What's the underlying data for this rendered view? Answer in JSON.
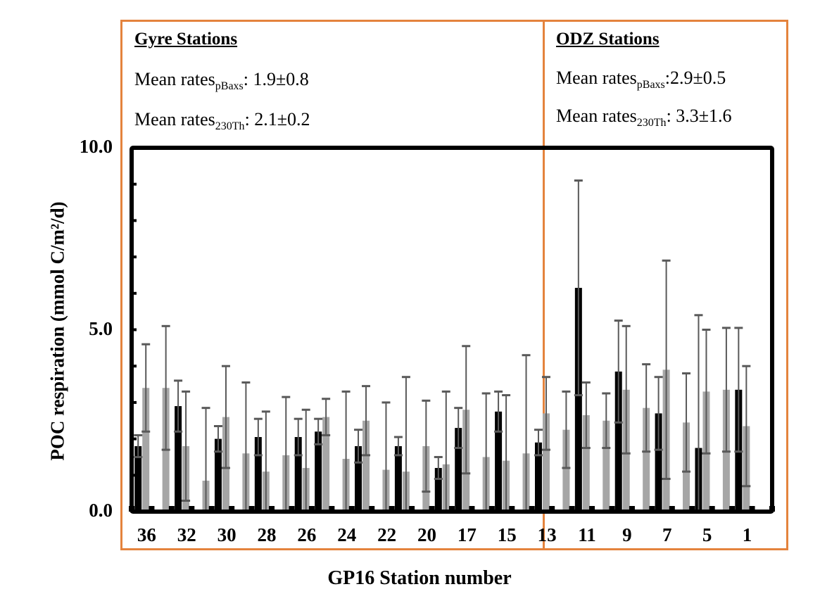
{
  "panels": {
    "gyre": {
      "title": "Gyre Stations",
      "mean_pbaxs_prefix": "Mean rates",
      "mean_pbaxs_sub": "pBaxs",
      "mean_pbaxs_value": ": 1.9±0.8",
      "mean_th_prefix": "Mean rates",
      "mean_th_sub": "230Th",
      "mean_th_value": ": 2.1±0.2"
    },
    "odz": {
      "title": "ODZ Stations",
      "mean_pbaxs_prefix": "Mean rates",
      "mean_pbaxs_sub": "pBaxs",
      "mean_pbaxs_value": ":2.9±0.5",
      "mean_th_prefix": "Mean rates",
      "mean_th_sub": "230Th",
      "mean_th_value": ": 3.3±1.6"
    }
  },
  "colors": {
    "frame_orange": "#e4833d",
    "pbaxs_bar": "#000000",
    "th_bar": "#a6a6a6",
    "error_bar": "#595959"
  },
  "chart_data": {
    "type": "bar",
    "title": "",
    "xlabel": "GP16 Station number",
    "ylabel": "POC respiration (mmol C/m²/d)",
    "ylim": [
      0,
      10
    ],
    "yticks": [
      "0.0",
      "5.0",
      "10.0"
    ],
    "ytick_values": [
      0,
      5,
      10
    ],
    "grid": false,
    "tick_labels": [
      "36",
      "32",
      "30",
      "28",
      "26",
      "24",
      "22",
      "20",
      "17",
      "15",
      "13",
      "11",
      "9",
      "7",
      "5",
      "1"
    ],
    "slot_count": 32,
    "series": [
      {
        "name": "pBaxs",
        "color": "#000000",
        "values": [
          1.8,
          null,
          2.9,
          null,
          2.0,
          null,
          2.05,
          null,
          2.05,
          2.2,
          null,
          1.8,
          null,
          1.8,
          null,
          1.2,
          2.3,
          null,
          2.75,
          null,
          1.9,
          null,
          6.15,
          null,
          3.85,
          null,
          2.7,
          null,
          1.75,
          null,
          3.35,
          null
        ],
        "errors": [
          0.3,
          null,
          0.7,
          null,
          0.35,
          null,
          0.5,
          null,
          0.5,
          0.35,
          null,
          0.45,
          null,
          0.25,
          null,
          0.3,
          0.55,
          null,
          0.55,
          null,
          0.35,
          null,
          2.95,
          null,
          1.4,
          null,
          1.0,
          null,
          3.65,
          null,
          1.7,
          null
        ]
      },
      {
        "name": "230Th",
        "color": "#a6a6a6",
        "values": [
          3.4,
          3.4,
          1.8,
          0.85,
          2.6,
          1.6,
          1.1,
          1.55,
          1.2,
          2.6,
          1.45,
          2.5,
          1.15,
          1.1,
          1.8,
          1.3,
          2.8,
          1.5,
          1.4,
          1.6,
          2.7,
          2.25,
          2.65,
          2.5,
          3.35,
          2.85,
          3.9,
          2.45,
          3.3,
          3.35,
          2.35,
          null
        ],
        "errors": [
          1.2,
          1.7,
          1.5,
          2.0,
          1.4,
          1.95,
          1.65,
          1.6,
          1.6,
          0.5,
          1.85,
          0.95,
          1.85,
          2.6,
          1.25,
          2.0,
          1.75,
          1.75,
          1.8,
          2.7,
          1.0,
          1.05,
          0.9,
          0.75,
          1.75,
          1.2,
          3.0,
          1.35,
          1.7,
          1.7,
          1.65,
          null
        ]
      }
    ],
    "regions": [
      {
        "name": "Gyre Stations",
        "slots": [
          0,
          19
        ]
      },
      {
        "name": "ODZ Stations",
        "slots": [
          20,
          31
        ]
      }
    ]
  }
}
